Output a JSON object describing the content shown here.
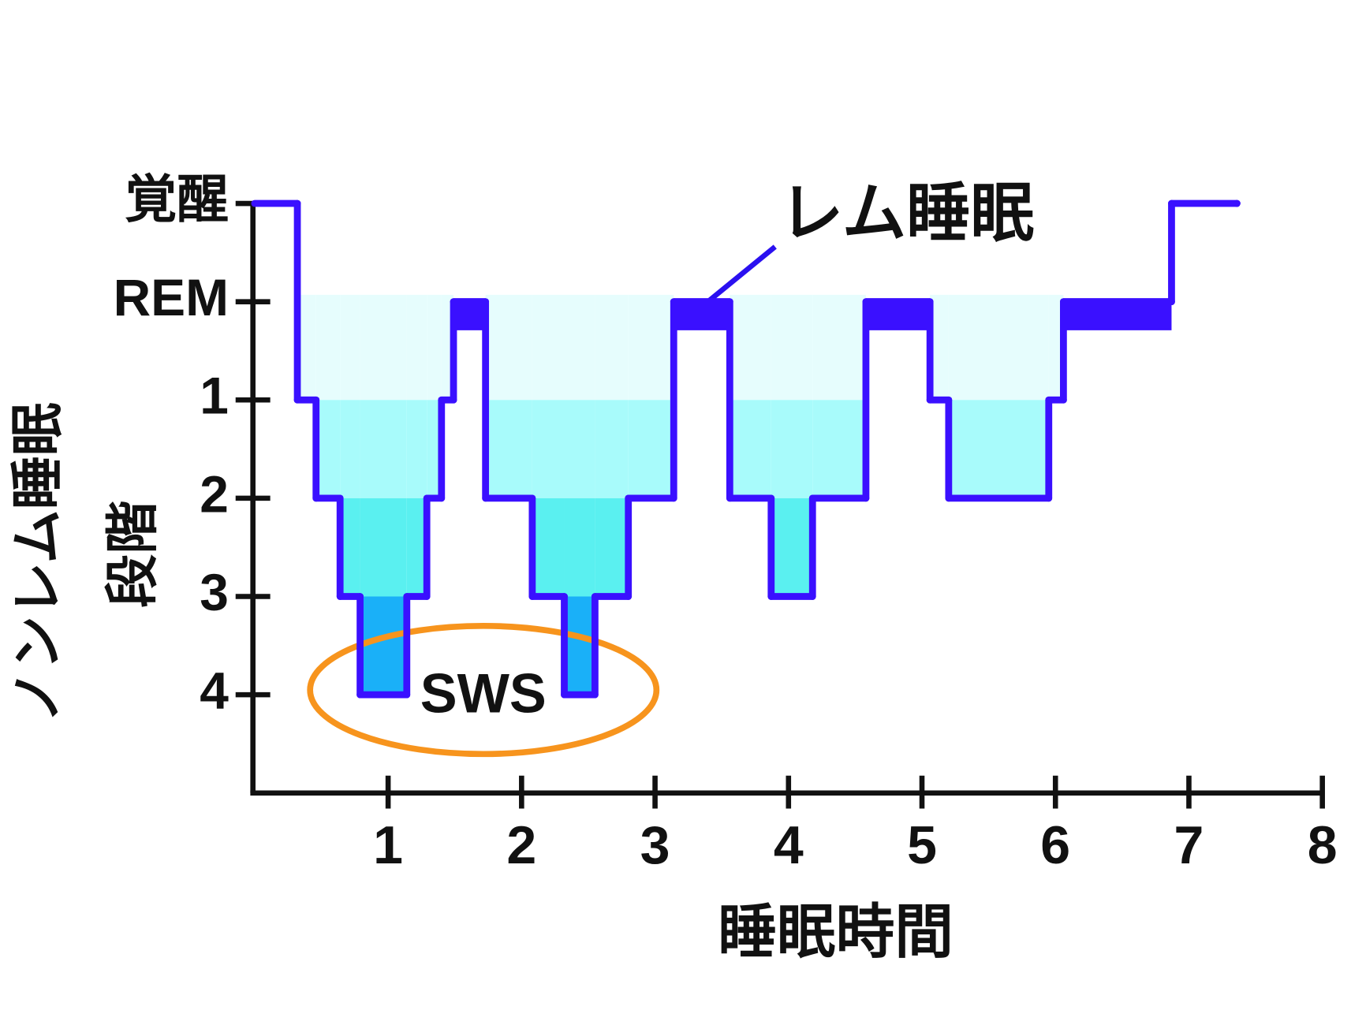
{
  "chart_data": {
    "type": "hypnogram",
    "y_label": [
      "ノンレム睡眠",
      "段階"
    ],
    "x_label": "睡眠時間",
    "x": [
      0,
      0.32,
      0.46,
      0.64,
      0.79,
      1.14,
      1.29,
      1.4,
      1.49,
      1.73,
      2.08,
      2.32,
      2.55,
      2.8,
      3.14,
      3.56,
      3.87,
      4.18,
      4.58,
      5.06,
      5.2,
      5.95,
      6.06,
      6.87,
      7.36
    ],
    "values": [
      -1,
      1,
      2,
      3,
      4,
      3,
      2,
      1,
      0,
      2,
      3,
      4,
      3,
      2,
      0,
      2,
      3,
      2,
      0,
      1,
      2,
      1,
      0,
      -1,
      -1
    ],
    "color": "#3a10ff",
    "band_colors": [
      "#e6fdfd",
      "#a8fbfb",
      "#5af0f0",
      "#1ab0f8"
    ],
    "xlim": [
      0,
      8
    ],
    "xticks": [
      1,
      2,
      3,
      4,
      5,
      6,
      7,
      8
    ],
    "ylim": [
      -1,
      5
    ],
    "y_inverted": true,
    "yticks": [
      {
        "value": -1,
        "label": "覚醒"
      },
      {
        "value": 0,
        "label": "REM"
      },
      1,
      2,
      3,
      4
    ],
    "annotations": [
      {
        "text": "レム睡眠",
        "color": "#2a10f0"
      },
      {
        "text": "SWS",
        "color": "#f7941d"
      }
    ]
  }
}
